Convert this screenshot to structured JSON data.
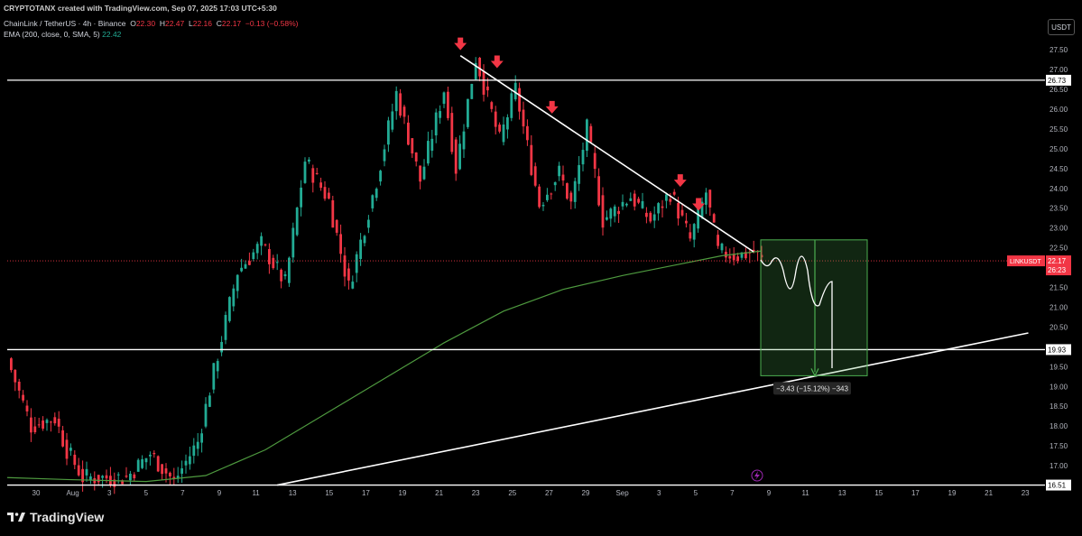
{
  "header": {
    "top_line": "CRYPTOTANX created with TradingView.com, Sep 07, 2025 17:03 UTC+5:30",
    "symbol_line": "ChainLink / TetherUS · 4h · Binance",
    "ohlc": {
      "o_label": "O",
      "o": "22.30",
      "h_label": "H",
      "h": "22.47",
      "l_label": "L",
      "l": "22.16",
      "c_label": "C",
      "c": "22.17",
      "change": "−0.13 (−0.58%)"
    },
    "ema_label": "EMA (200, close, 0, SMA, 5)",
    "ema_value": "22.42"
  },
  "currency_button": "USDT",
  "footer_brand": "TradingView",
  "colors": {
    "up": "#22ab94",
    "down": "#f23645",
    "ema": "#4e9a3f",
    "line": "#ffffff",
    "arrow": "#f23645",
    "box": "#4caf50",
    "axis_text": "#b2b5be"
  },
  "chart_data": {
    "type": "candlestick",
    "symbol": "LINKUSDT",
    "timeframe": "4h",
    "ylim": [
      16.5,
      28.0
    ],
    "y_ticks": [
      "27.50",
      "27.00",
      "26.50",
      "26.00",
      "25.50",
      "25.00",
      "24.50",
      "24.00",
      "23.50",
      "23.00",
      "22.50",
      "22.00",
      "21.50",
      "21.00",
      "20.50",
      "20.00",
      "19.50",
      "19.00",
      "18.50",
      "18.00",
      "17.50",
      "17.00"
    ],
    "x_ticks": [
      "30",
      "Aug",
      "3",
      "5",
      "7",
      "9",
      "11",
      "13",
      "15",
      "17",
      "19",
      "21",
      "23",
      "25",
      "27",
      "29",
      "Sep",
      "3",
      "5",
      "7",
      "9",
      "11",
      "13",
      "15",
      "17",
      "19",
      "21",
      "23"
    ],
    "price_path_keypoints": [
      [
        0,
        19.7
      ],
      [
        6,
        18.0
      ],
      [
        12,
        18.2
      ],
      [
        15,
        17.4
      ],
      [
        19,
        16.7
      ],
      [
        30,
        16.7
      ],
      [
        36,
        17.3
      ],
      [
        42,
        16.6
      ],
      [
        48,
        17.6
      ],
      [
        53,
        19.8
      ],
      [
        58,
        21.9
      ],
      [
        64,
        22.6
      ],
      [
        70,
        21.6
      ],
      [
        75,
        24.7
      ],
      [
        81,
        23.7
      ],
      [
        86,
        21.5
      ],
      [
        93,
        24.2
      ],
      [
        98,
        26.4
      ],
      [
        104,
        24.2
      ],
      [
        110,
        26.5
      ],
      [
        113,
        24.5
      ],
      [
        118,
        27.3
      ],
      [
        124,
        25.2
      ],
      [
        128,
        26.5
      ],
      [
        134,
        23.6
      ],
      [
        139,
        24.4
      ],
      [
        142,
        23.6
      ],
      [
        146,
        25.5
      ],
      [
        150,
        23.2
      ],
      [
        157,
        23.8
      ],
      [
        162,
        23.2
      ],
      [
        167,
        23.9
      ],
      [
        172,
        22.7
      ],
      [
        176,
        23.9
      ],
      [
        179,
        22.4
      ],
      [
        184,
        22.3
      ],
      [
        188,
        22.4
      ],
      [
        190,
        22.17
      ]
    ],
    "ema_200_keypoints": [
      [
        0,
        16.7
      ],
      [
        15,
        16.65
      ],
      [
        35,
        16.6
      ],
      [
        50,
        16.75
      ],
      [
        65,
        17.4
      ],
      [
        80,
        18.3
      ],
      [
        95,
        19.2
      ],
      [
        110,
        20.1
      ],
      [
        125,
        20.9
      ],
      [
        140,
        21.45
      ],
      [
        155,
        21.8
      ],
      [
        170,
        22.1
      ],
      [
        180,
        22.3
      ],
      [
        190,
        22.42
      ]
    ],
    "horizontal_levels": [
      {
        "label": "26.73",
        "value": 26.73
      },
      {
        "label": "19.93",
        "value": 19.93
      },
      {
        "label": "16.51",
        "value": 16.51
      }
    ],
    "current_price": {
      "symbol_label": "LINKUSDT",
      "price": "22.17",
      "countdown": "26:23",
      "value": 22.17
    },
    "trendlines": [
      {
        "name": "descending-resistance",
        "from": {
          "date": "Aug 23",
          "price": 27.35
        },
        "to": {
          "date": "Sep 8",
          "price": 22.4
        }
      },
      {
        "name": "ascending-support",
        "from": {
          "date": "Aug 13",
          "price": 16.51
        },
        "to": {
          "date": "Sep 23",
          "price": 20.35
        }
      }
    ],
    "resistance_touches": [
      {
        "date": "Aug 23",
        "price": 27.35
      },
      {
        "date": "Aug 25",
        "price": 26.9
      },
      {
        "date": "Aug 28",
        "price": 25.75
      },
      {
        "date": "Sep 4",
        "price": 23.9
      },
      {
        "date": "Sep 5",
        "price": 23.3
      }
    ],
    "projection": {
      "box_top": 22.7,
      "box_bottom": 19.27,
      "label": "−3.43 (−15.12%) −343"
    }
  }
}
